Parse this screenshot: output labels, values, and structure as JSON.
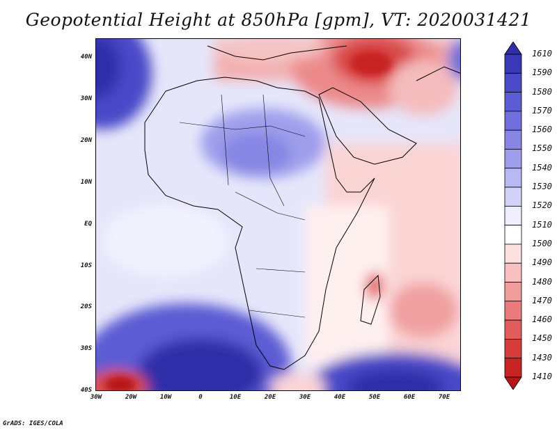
{
  "title": "Geopotential Height at 850hPa [gpm], VT: 2020031421",
  "credit": "GrADS: IGES/COLA",
  "map": {
    "projection": "lat-lon",
    "lon_range": [
      -30,
      75
    ],
    "lat_range": [
      -40,
      45
    ],
    "lat_ticks": [
      "40N",
      "30N",
      "20N",
      "10N",
      "EQ",
      "10S",
      "20S",
      "30S",
      "40S"
    ],
    "lon_ticks": [
      "30W",
      "20W",
      "10W",
      "0",
      "10E",
      "20E",
      "30E",
      "40E",
      "50E",
      "60E",
      "70E"
    ]
  },
  "colorbar": {
    "labels": [
      "1610",
      "1590",
      "1580",
      "1570",
      "1560",
      "1550",
      "1540",
      "1530",
      "1520",
      "1510",
      "1500",
      "1490",
      "1480",
      "1470",
      "1460",
      "1450",
      "1430",
      "1410"
    ],
    "colors": [
      "#2e2ea8",
      "#3838b8",
      "#4a4ac8",
      "#5c5cd4",
      "#7070dc",
      "#8686e4",
      "#9e9eec",
      "#b8b8f2",
      "#d2d2f8",
      "#eeeeff",
      "#ffffff",
      "#fde0e0",
      "#f8c0c0",
      "#f29c9c",
      "#ec7c7c",
      "#e25c5c",
      "#d63c3c",
      "#c82424",
      "#b81414"
    ]
  },
  "colors": {
    "high_strong": "#2e2ea8",
    "low_strong": "#c82424"
  }
}
